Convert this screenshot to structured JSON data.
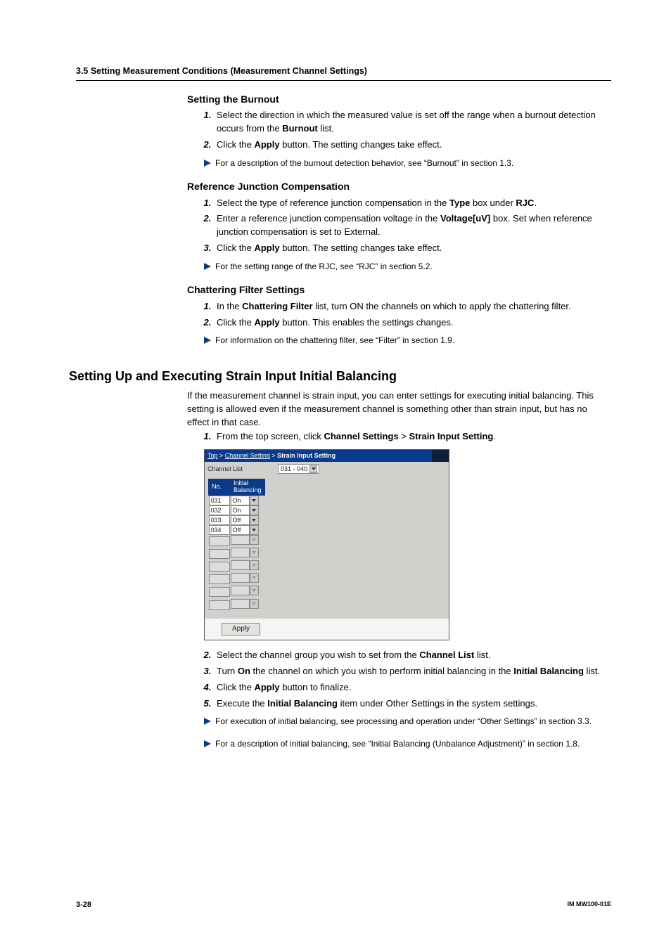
{
  "header": "3.5  Setting Measurement Conditions (Measurement Channel Settings)",
  "burnout": {
    "heading": "Setting the Burnout",
    "steps": [
      "Select the direction in which the measured value is set off the range when a burnout detection occurs from the <b>Burnout</b> list.",
      "Click the <b>Apply</b> button. The setting changes take effect."
    ],
    "note": "For a description of the burnout detection behavior, see “Burnout” in section 1.3."
  },
  "rjc": {
    "heading": "Reference Junction Compensation",
    "steps": [
      "Select the type of reference junction compensation in the <b>Type</b> box under <b>RJC</b>.",
      "Enter a reference junction compensation voltage in the <b>Voltage[uV]</b> box. Set when reference junction compensation is set to External.",
      "Click the <b>Apply</b> button. The setting changes take effect."
    ],
    "note": "For the setting range of the RJC, see “RJC” in section 5.2."
  },
  "chatter": {
    "heading": "Chattering Filter Settings",
    "steps": [
      "In the <b>Chattering Filter</b> list, turn ON the channels on which to apply the chattering filter.",
      "Click the <b>Apply</b> button. This enables the settings changes."
    ],
    "note": "For information on the chattering filter, see “Filter” in section 1.9."
  },
  "strain": {
    "h2": "Setting Up and Executing Strain Input Initial Balancing",
    "intro": "If the measurement channel is strain input, you can enter settings for executing initial balancing. This setting is allowed even if the measurement channel is something other than strain input, but has no effect in that case.",
    "step1": "From the top screen, click <b>Channel Settings</b> > <b>Strain Input Setting</b>.",
    "steps_after": [
      "Select the channel group you wish to set from the <b>Channel List</b> list.",
      "Turn <b>On</b> the channel on which you wish to perform initial balancing in the <b>Initial Balancing</b> list.",
      "Click the <b>Apply</b> button to finalize.",
      "Execute the <b>Initial Balancing</b> item under Other Settings in the system settings."
    ],
    "note1": "For execution of initial balancing, see processing and operation under “Other Settings” in section 3.3.",
    "note2": "For a description of initial balancing, see “Initial Balancing (Unbalance Adjustment)” in section 1.8."
  },
  "shot": {
    "breadcrumb_html": "<a>Top</a> &gt; <a>Channel Setting</a> &gt; <b>Strain Input Setting</b>",
    "toolbar_label": "Channel List",
    "toolbar_value": "031 - 040",
    "col_no": "No.",
    "col_bal": "Initial\nBalancing",
    "rows": [
      {
        "no": "031",
        "val": "On",
        "disabled": false
      },
      {
        "no": "032",
        "val": "On",
        "disabled": false
      },
      {
        "no": "033",
        "val": "Off",
        "disabled": false
      },
      {
        "no": "034",
        "val": "Off",
        "disabled": false
      },
      {
        "no": "",
        "val": "",
        "disabled": true
      },
      {
        "no": "",
        "val": "",
        "disabled": true
      },
      {
        "no": "",
        "val": "",
        "disabled": true
      },
      {
        "no": "",
        "val": "",
        "disabled": true
      },
      {
        "no": "",
        "val": "",
        "disabled": true
      },
      {
        "no": "",
        "val": "",
        "disabled": true
      }
    ],
    "apply": "Apply"
  },
  "footer": {
    "left": "3-28",
    "right": "IM MW100-01E"
  }
}
